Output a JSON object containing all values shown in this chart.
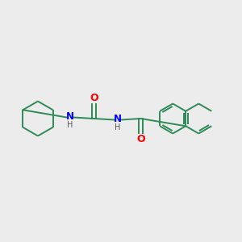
{
  "bg_color": "#ececec",
  "bond_color": "#2e8b57",
  "N_color": "#0000ff",
  "O_color": "#ff0000",
  "H_color": "#555555",
  "lw": 1.4,
  "figsize": [
    3.0,
    3.0
  ],
  "dpi": 100,
  "xlim": [
    0,
    10
  ],
  "ylim": [
    0,
    10
  ]
}
